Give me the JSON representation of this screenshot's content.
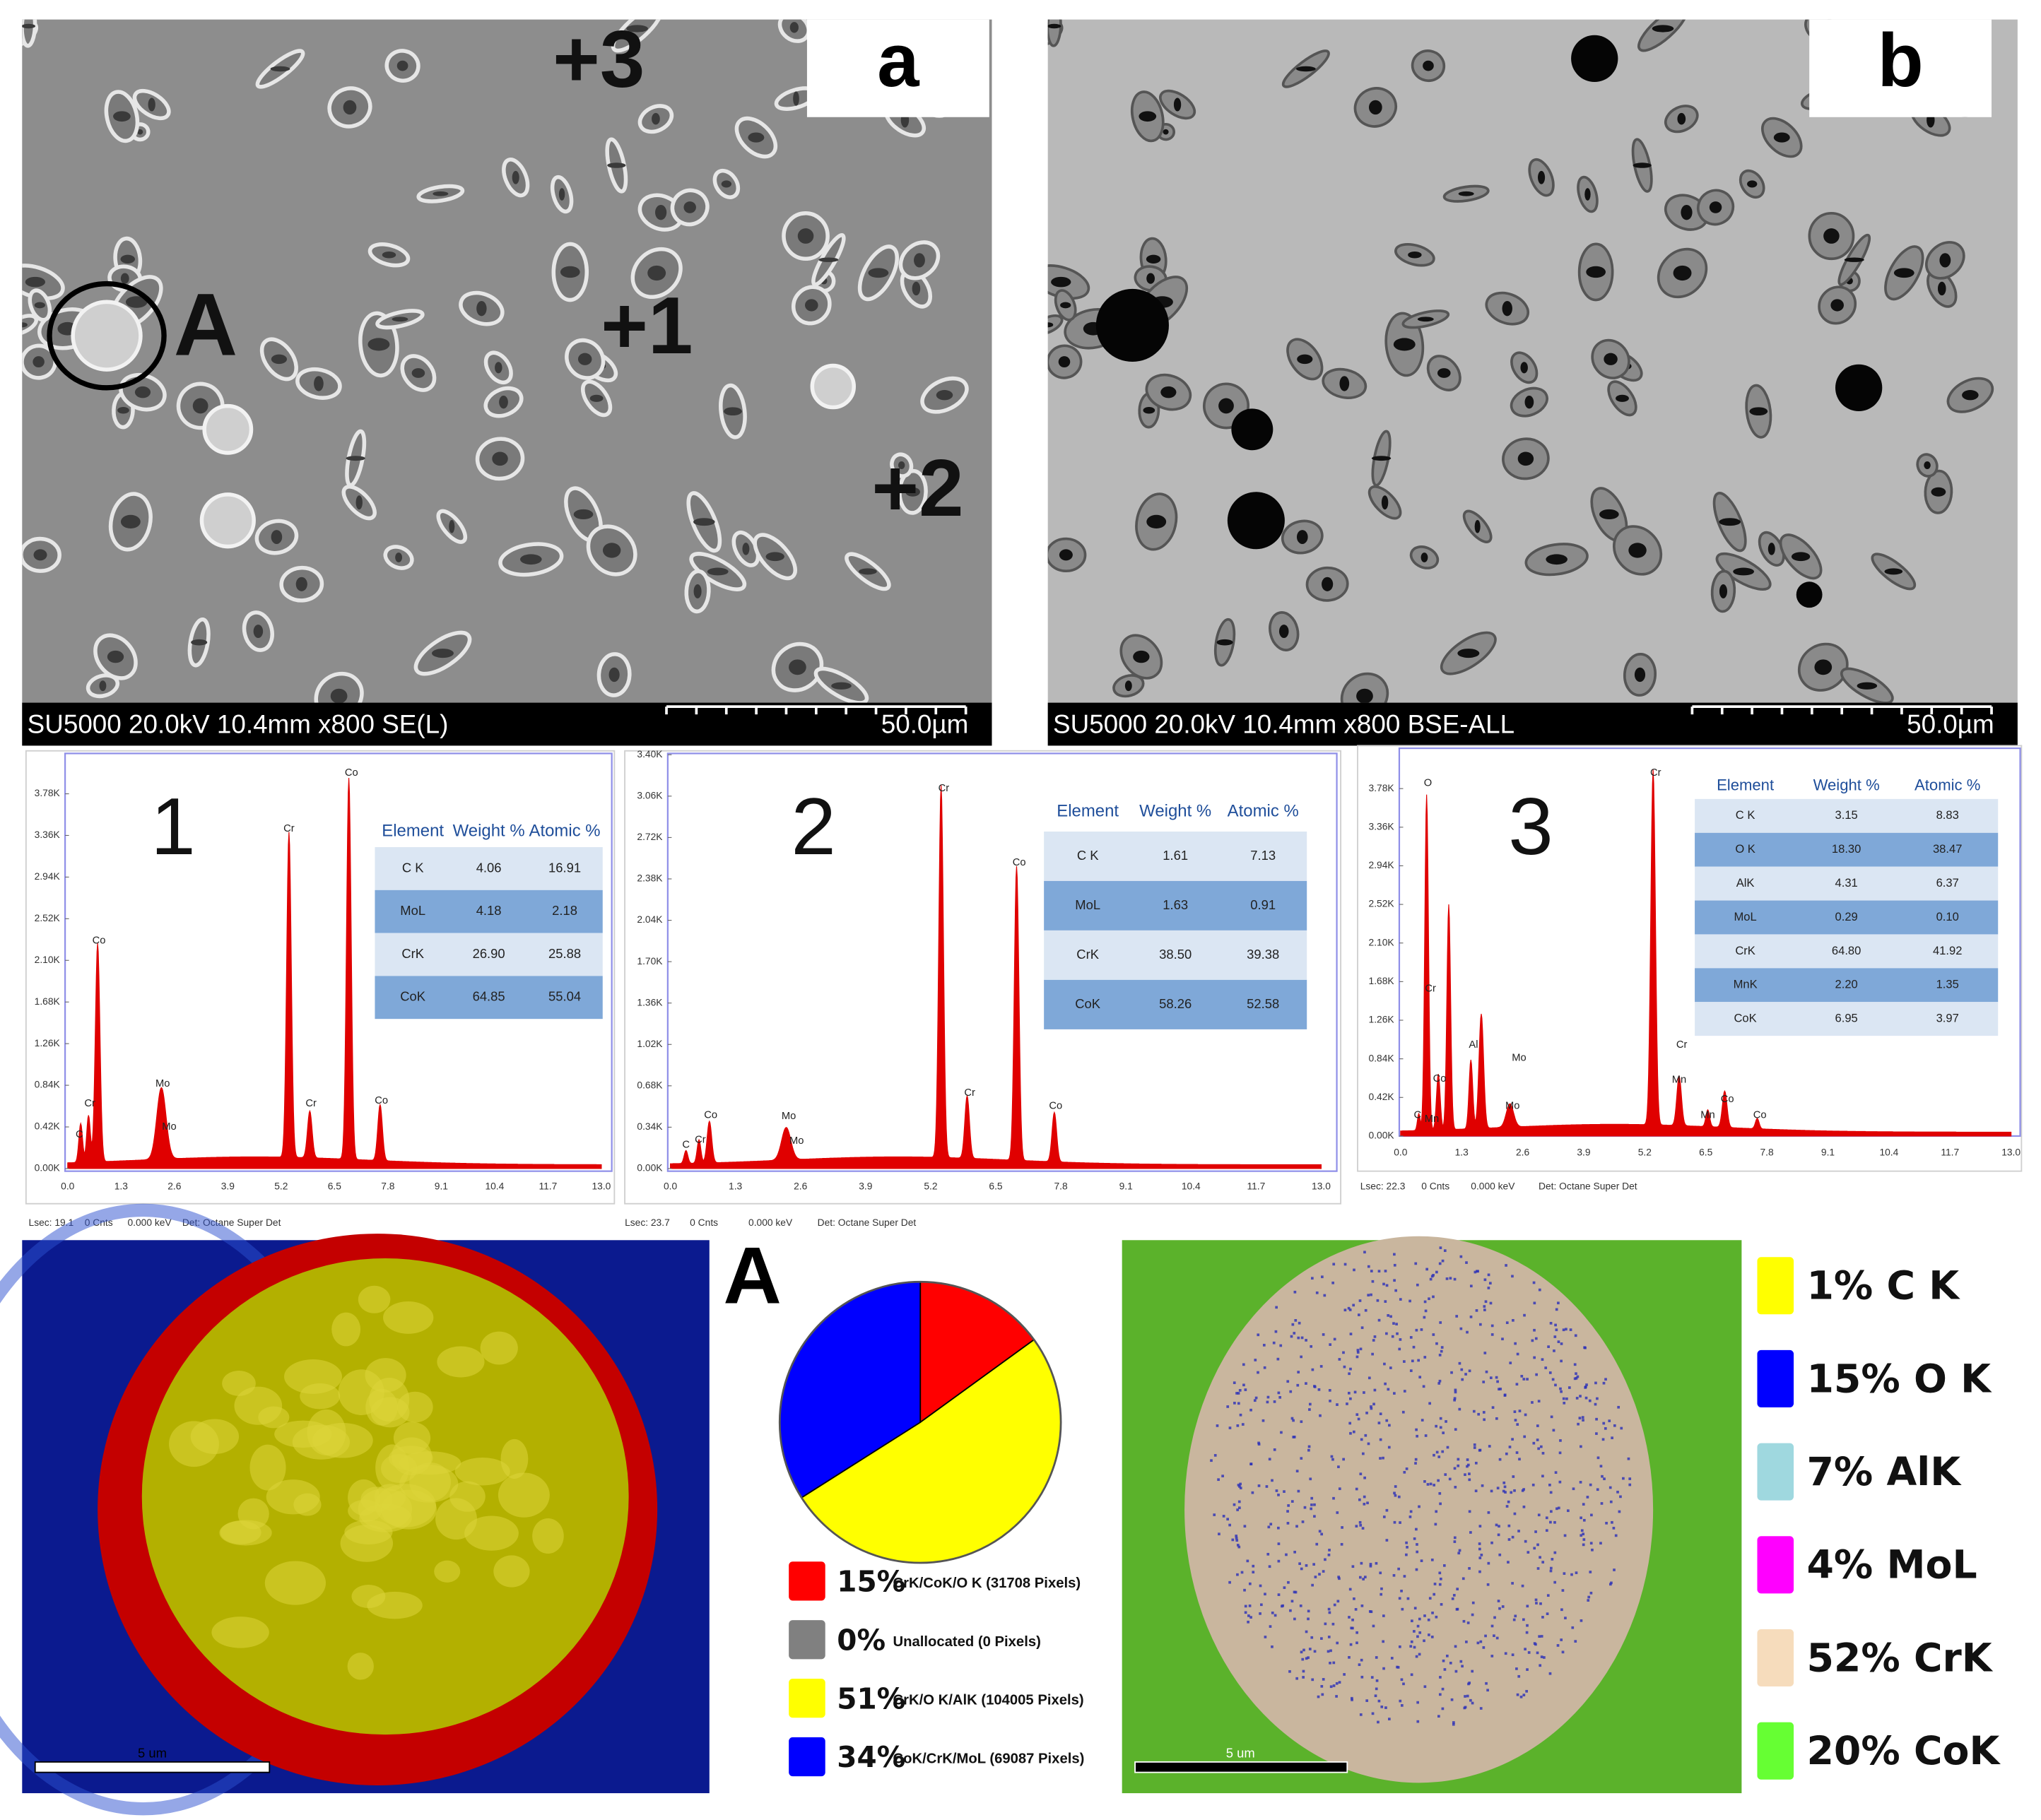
{
  "panels": [
    {
      "label": "a",
      "markers": [
        "+3",
        "+1",
        "+2",
        "A"
      ],
      "caption": "SU5000 20.0kV 10.4mm x800 SE(L)",
      "scale_bar": "50.0µm"
    },
    {
      "label": "b",
      "caption": "SU5000 20.0kV 10.4mm x800 BSE-ALL",
      "scale_bar": "50.0µm"
    }
  ],
  "spectra": [
    {
      "label": "1",
      "yticks": [
        "3.78K",
        "3.36K",
        "2.94K",
        "2.52K",
        "2.10K",
        "1.68K",
        "1.26K",
        "0.84K",
        "0.42K",
        "0.00K"
      ],
      "xticks": [
        "0.0",
        "1.3",
        "2.6",
        "3.9",
        "5.2",
        "6.5",
        "7.8",
        "9.1",
        "10.4",
        "11.7",
        "13.0"
      ],
      "peak_labels": [
        "C",
        "Cr",
        "Co",
        "Mo",
        "Mo",
        "Cr",
        "Cr",
        "Co",
        "Co"
      ],
      "table": {
        "columns": [
          "Element",
          "Weight %",
          "Atomic %"
        ],
        "rows": [
          [
            "C K",
            "4.06",
            "16.91"
          ],
          [
            "MoL",
            "4.18",
            "2.18"
          ],
          [
            "CrK",
            "26.90",
            "25.88"
          ],
          [
            "CoK",
            "64.85",
            "55.04"
          ]
        ]
      },
      "status": [
        "Lsec: 19.1",
        "0 Cnts",
        "0.000 keV",
        "Det: Octane Super Det"
      ]
    },
    {
      "label": "2",
      "yticks": [
        "3.40K",
        "3.06K",
        "2.72K",
        "2.38K",
        "2.04K",
        "1.70K",
        "1.36K",
        "1.02K",
        "0.68K",
        "0.34K",
        "0.00K"
      ],
      "xticks": [
        "0.0",
        "1.3",
        "2.6",
        "3.9",
        "5.2",
        "6.5",
        "7.8",
        "9.1",
        "10.4",
        "11.7",
        "13.0"
      ],
      "peak_labels": [
        "C",
        "Cr",
        "Co",
        "Mo",
        "Mo",
        "Cr",
        "Cr",
        "Co",
        "Co"
      ],
      "table": {
        "columns": [
          "Element",
          "Weight %",
          "Atomic %"
        ],
        "rows": [
          [
            "C K",
            "1.61",
            "7.13"
          ],
          [
            "MoL",
            "1.63",
            "0.91"
          ],
          [
            "CrK",
            "38.50",
            "39.38"
          ],
          [
            "CoK",
            "58.26",
            "52.58"
          ]
        ]
      },
      "status": [
        "Lsec: 23.7",
        "0 Cnts",
        "0.000 keV",
        "Det: Octane Super Det"
      ]
    },
    {
      "label": "3",
      "yticks": [
        "3.78K",
        "3.36K",
        "2.94K",
        "2.52K",
        "2.10K",
        "1.68K",
        "1.26K",
        "0.84K",
        "0.42K",
        "0.00K"
      ],
      "xticks": [
        "0.0",
        "1.3",
        "2.6",
        "3.9",
        "5.2",
        "6.5",
        "7.8",
        "9.1",
        "10.4",
        "11.7",
        "13.0"
      ],
      "peak_labels": [
        "O",
        "Cr",
        "C",
        "Co",
        "Mn",
        "Al",
        "Mo",
        "Mo",
        "Cr",
        "Cr",
        "Mn",
        "Mn",
        "Co",
        "Co"
      ],
      "table": {
        "columns": [
          "Element",
          "Weight %",
          "Atomic %"
        ],
        "rows": [
          [
            "C K",
            "3.15",
            "8.83"
          ],
          [
            "O K",
            "18.30",
            "38.47"
          ],
          [
            "AlK",
            "4.31",
            "6.37"
          ],
          [
            "MoL",
            "0.29",
            "0.10"
          ],
          [
            "CrK",
            "64.80",
            "41.92"
          ],
          [
            "MnK",
            "2.20",
            "1.35"
          ],
          [
            "CoK",
            "6.95",
            "3.97"
          ]
        ]
      },
      "status": [
        "Lsec: 22.3",
        "0 Cnts",
        "0.000 keV",
        "Det: Octane Super Det"
      ]
    }
  ],
  "map_left": {
    "scale_bar": "5 um"
  },
  "phase_chart": {
    "type": "pie",
    "label": "A",
    "categories": [
      "CrK/CoK/O K (31708 Pixels)",
      "Unallocated (0 Pixels)",
      "CrK/O K/AlK (104005 Pixels)",
      "CoK/CrK/MoL (69087 Pixels)"
    ],
    "values": [
      15,
      0,
      51,
      34
    ],
    "value_labels": [
      "15%",
      "0%",
      "51%",
      "34%"
    ],
    "colors": [
      "#ff0000",
      "#808080",
      "#ffff00",
      "#0000ff"
    ]
  },
  "map_right": {
    "scale_bar": "5 um",
    "legend": [
      {
        "label": "1% C K",
        "color": "#ffff00"
      },
      {
        "label": "15% O K",
        "color": "#0000ff"
      },
      {
        "label": "7% AlK",
        "color": "#9fd8df"
      },
      {
        "label": "4% MoL",
        "color": "#ff00ff"
      },
      {
        "label": "52% CrK",
        "color": "#f6dcbc"
      },
      {
        "label": "20% CoK",
        "color": "#66ff33"
      }
    ]
  }
}
